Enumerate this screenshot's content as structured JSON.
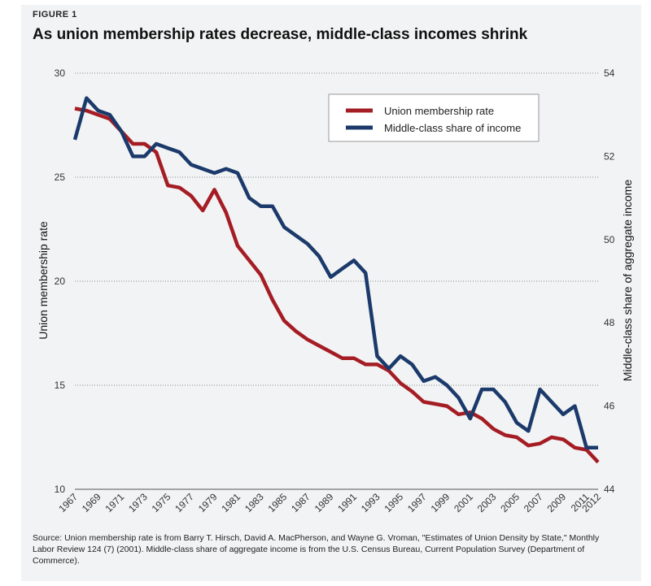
{
  "figure_label": "FIGURE 1",
  "title": "As union membership rates decrease, middle-class incomes shrink",
  "source_note": "Source: Union membership rate is from Barry T. Hirsch, David A. MacPherson, and Wayne G. Vroman, \"Estimates of Union Density by State,\" Monthly Labor Review 124 (7) (2001). Middle-class share of aggregate income is from the U.S. Census Bureau, Current Population Survey (Department of Commerce).",
  "colors": {
    "union": "#a51d24",
    "middle": "#1b3a6b",
    "grid": "#888888"
  },
  "chart_data": {
    "type": "line",
    "title": "As union membership rates decrease, middle-class incomes shrink",
    "xlabel": "",
    "ylabel_left": "Union membership rate",
    "ylabel_right": "Middle-class share of aggregate income",
    "ylim_left": [
      10,
      30
    ],
    "ylim_right": [
      44,
      54
    ],
    "yticks_left": [
      10,
      15,
      20,
      25,
      30
    ],
    "yticks_right": [
      44,
      46,
      48,
      50,
      52,
      54
    ],
    "x_tick_labels": [
      "1967",
      "1969",
      "1971",
      "1973",
      "1975",
      "1977",
      "1979",
      "1981",
      "1983",
      "1985",
      "1987",
      "1989",
      "1991",
      "1993",
      "1995",
      "1997",
      "1999",
      "2001",
      "2003",
      "2005",
      "2007",
      "2009",
      "2011",
      "2012"
    ],
    "legend": [
      "Union membership rate",
      "Middle-class share of income"
    ],
    "legend_position": "top-right",
    "x": [
      1967,
      1968,
      1969,
      1970,
      1971,
      1972,
      1973,
      1974,
      1975,
      1976,
      1977,
      1978,
      1979,
      1980,
      1981,
      1982,
      1983,
      1984,
      1985,
      1986,
      1987,
      1988,
      1989,
      1990,
      1991,
      1992,
      1993,
      1994,
      1995,
      1996,
      1997,
      1998,
      1999,
      2000,
      2001,
      2002,
      2003,
      2004,
      2005,
      2006,
      2007,
      2008,
      2009,
      2010,
      2011,
      2012
    ],
    "series": [
      {
        "name": "Union membership rate",
        "axis": "left",
        "values": [
          28.3,
          28.2,
          28.0,
          27.8,
          27.2,
          26.6,
          26.6,
          26.2,
          24.6,
          24.5,
          24.1,
          23.4,
          24.4,
          23.3,
          21.7,
          21.0,
          20.3,
          19.1,
          18.1,
          17.6,
          17.2,
          16.9,
          16.6,
          16.3,
          16.3,
          16.0,
          16.0,
          15.7,
          15.1,
          14.7,
          14.2,
          14.1,
          14.0,
          13.6,
          13.7,
          13.4,
          12.9,
          12.6,
          12.5,
          12.1,
          12.2,
          12.5,
          12.4,
          12.0,
          11.9,
          11.3
        ]
      },
      {
        "name": "Middle-class share of income",
        "axis": "right",
        "values": [
          52.4,
          53.4,
          53.1,
          53.0,
          52.6,
          52.0,
          52.0,
          52.3,
          52.2,
          52.1,
          51.8,
          51.7,
          51.6,
          51.7,
          51.6,
          51.0,
          50.8,
          50.8,
          50.3,
          50.1,
          49.9,
          49.6,
          49.1,
          49.3,
          49.5,
          49.2,
          47.2,
          46.9,
          47.2,
          47.0,
          46.6,
          46.7,
          46.5,
          46.2,
          45.7,
          46.4,
          46.4,
          46.1,
          45.6,
          45.4,
          46.4,
          46.1,
          45.8,
          46.0,
          45.0,
          45.0
        ]
      }
    ]
  }
}
